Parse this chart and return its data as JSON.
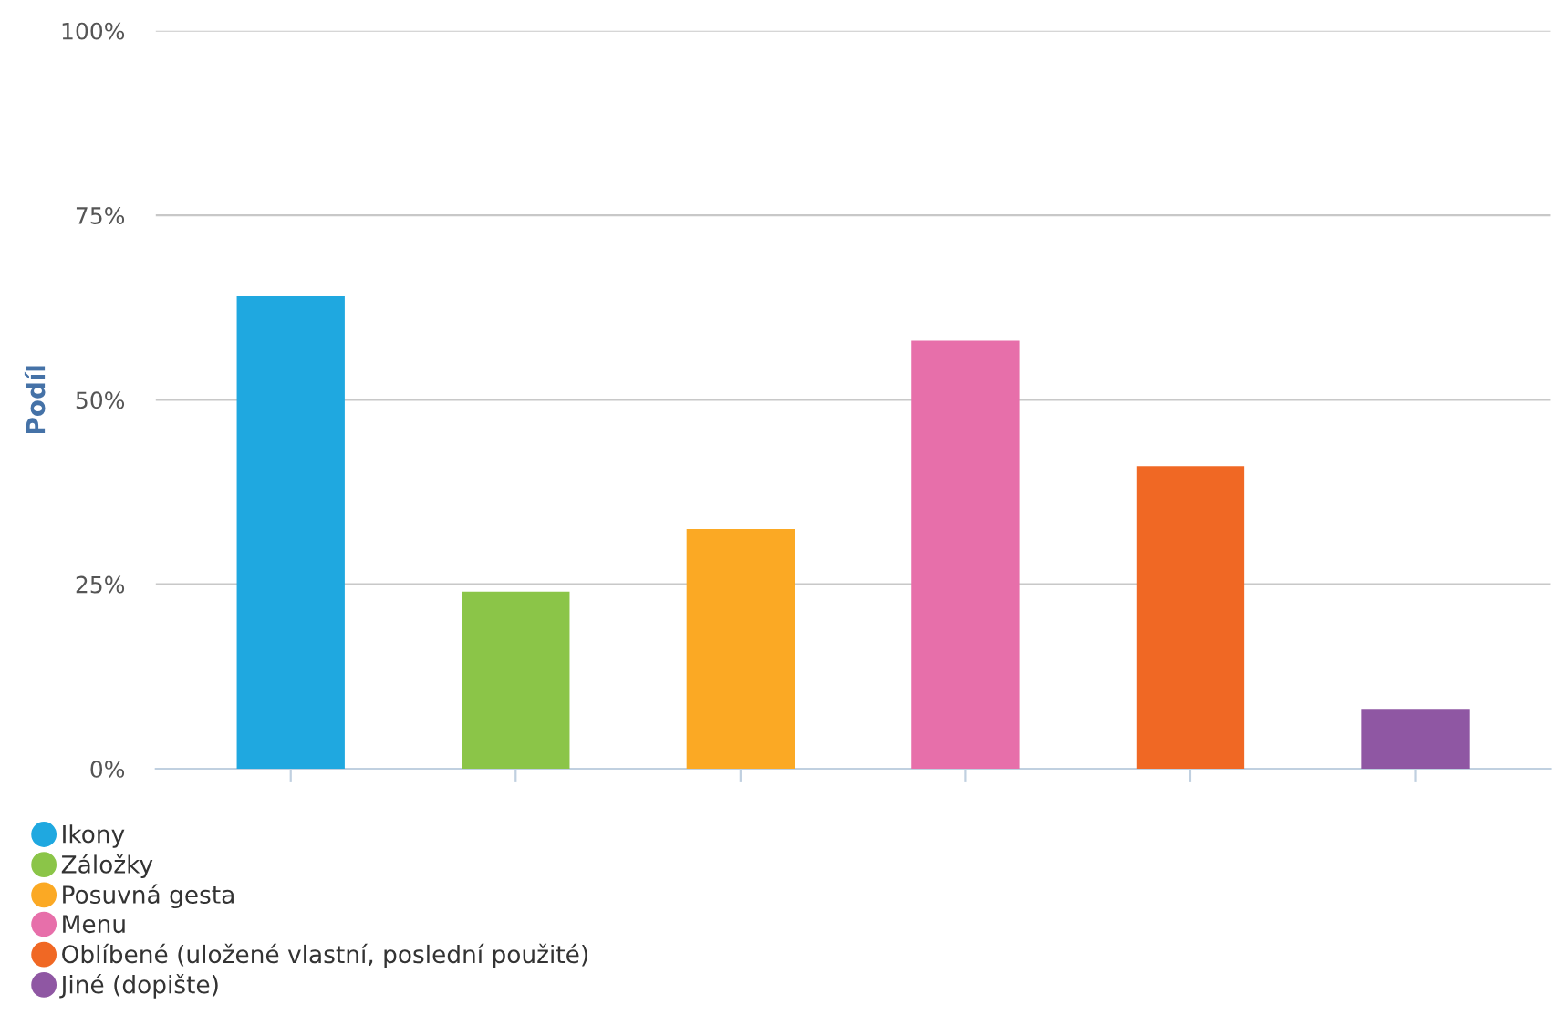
{
  "chart_data": {
    "type": "bar",
    "ylabel": "Podíl",
    "categories": [
      null,
      null,
      null,
      null,
      null,
      null
    ],
    "series": [
      {
        "name": "Ikony",
        "color": "#1fa8e0",
        "values": [
          64,
          null,
          null,
          null,
          null,
          null
        ]
      },
      {
        "name": "Záložky",
        "color": "#8bc548",
        "values": [
          null,
          24,
          null,
          null,
          null,
          null
        ]
      },
      {
        "name": "Posuvná gesta",
        "color": "#fba924",
        "values": [
          null,
          null,
          32.5,
          null,
          null,
          null
        ]
      },
      {
        "name": "Menu",
        "color": "#e76faa",
        "values": [
          null,
          null,
          null,
          58,
          null,
          null
        ]
      },
      {
        "name": "Oblíbené (uložené vlastní, poslední použité)",
        "color": "#f06824",
        "values": [
          null,
          null,
          null,
          null,
          41,
          null
        ]
      },
      {
        "name": "Jiné (dopište)",
        "color": "#8f57a3",
        "values": [
          null,
          null,
          null,
          null,
          null,
          8
        ]
      }
    ],
    "ylim": [
      0,
      100
    ],
    "yticks": [
      {
        "value": 0,
        "label": "0%"
      },
      {
        "value": 25,
        "label": "25%"
      },
      {
        "value": 50,
        "label": "50%"
      },
      {
        "value": 75,
        "label": "75%"
      },
      {
        "value": 100,
        "label": "100%"
      }
    ],
    "grid": "y",
    "legend": "bottom left"
  }
}
